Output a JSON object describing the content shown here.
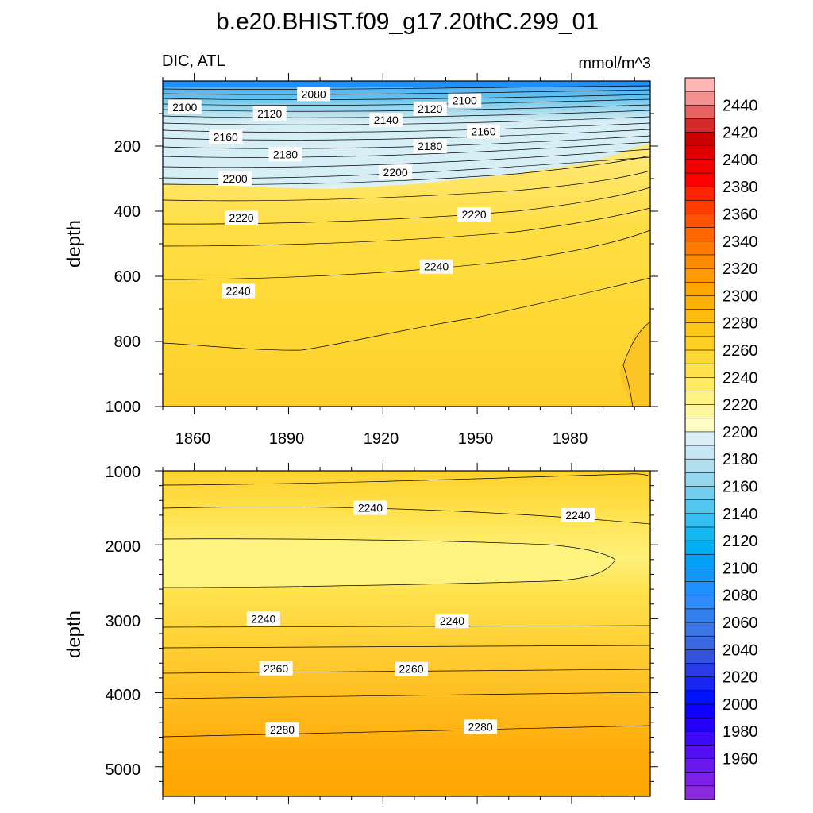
{
  "title": "b.e20.BHIST.f09_g17.20thC.299_01",
  "colors": {
    "colorbar": [
      "#8a2be2",
      "#7b20e8",
      "#6a18ee",
      "#5410f2",
      "#3c0af7",
      "#2400fb",
      "#0f00ff",
      "#0012ff",
      "#1a24f2",
      "#2a3ce8",
      "#3552de",
      "#3a66e0",
      "#3b77e6",
      "#347ff0",
      "#2e8cff",
      "#1e90ff",
      "#1197f8",
      "#05a0f5",
      "#00aef5",
      "#12b8f0",
      "#36bff0",
      "#55c6ee",
      "#75cdee",
      "#97d6ec",
      "#b1dff0",
      "#c7e7f4",
      "#daeef8",
      "#fffcc5",
      "#fff6a0",
      "#fff182",
      "#ffea66",
      "#ffe24d",
      "#ffd935",
      "#ffcf22",
      "#ffc61a",
      "#ffbc10",
      "#ffb005",
      "#ffa500",
      "#ff9a00",
      "#ff8c00",
      "#ff7a00",
      "#ff6600",
      "#ff5200",
      "#ff3c00",
      "#ff2400",
      "#ff0000",
      "#f20000",
      "#e00000",
      "#cc0000",
      "#d62a2a",
      "#e86060",
      "#f59090",
      "#ffb6b6"
    ]
  },
  "chart_data": [
    {
      "type": "heatmap",
      "title": "",
      "left_string": "DIC, ATL",
      "right_string": "mmol/m^3",
      "xlabel": "",
      "ylabel": "depth",
      "xlim": [
        1850,
        2005
      ],
      "ylim": [
        0,
        1000
      ],
      "y_reversed": true,
      "x_ticks": [
        "1860",
        "1890",
        "1920",
        "1950",
        "1980"
      ],
      "y_ticks": [
        "200",
        "400",
        "600",
        "800",
        "1000"
      ],
      "contour_labels": [
        {
          "text": "2100",
          "x": 1857,
          "y": 80
        },
        {
          "text": "2080",
          "x": 1898,
          "y": 40
        },
        {
          "text": "2120",
          "x": 1884,
          "y": 100
        },
        {
          "text": "2140",
          "x": 1921,
          "y": 120
        },
        {
          "text": "2120",
          "x": 1935,
          "y": 85
        },
        {
          "text": "2100",
          "x": 1946,
          "y": 60
        },
        {
          "text": "2160",
          "x": 1870,
          "y": 172
        },
        {
          "text": "2160",
          "x": 1952,
          "y": 155
        },
        {
          "text": "2180",
          "x": 1889,
          "y": 225
        },
        {
          "text": "2180",
          "x": 1935,
          "y": 200
        },
        {
          "text": "2200",
          "x": 1873,
          "y": 300
        },
        {
          "text": "2200",
          "x": 1924,
          "y": 280
        },
        {
          "text": "2220",
          "x": 1875,
          "y": 420
        },
        {
          "text": "2220",
          "x": 1949,
          "y": 410
        },
        {
          "text": "2240",
          "x": 1874,
          "y": 645
        },
        {
          "text": "2240",
          "x": 1937,
          "y": 570
        }
      ]
    },
    {
      "type": "heatmap",
      "xlabel": "",
      "ylabel": "depth",
      "xlim": [
        1850,
        2005
      ],
      "ylim": [
        1000,
        5400
      ],
      "y_reversed": true,
      "y_ticks": [
        "1000",
        "2000",
        "3000",
        "4000",
        "5000"
      ],
      "contour_labels": [
        {
          "text": "2240",
          "x": 1916,
          "y": 1500
        },
        {
          "text": "2240",
          "x": 1982,
          "y": 1600
        },
        {
          "text": "2240",
          "x": 1882,
          "y": 3000
        },
        {
          "text": "2240",
          "x": 1942,
          "y": 3030
        },
        {
          "text": "2260",
          "x": 1886,
          "y": 3670
        },
        {
          "text": "2260",
          "x": 1929,
          "y": 3680
        },
        {
          "text": "2280",
          "x": 1888,
          "y": 4500
        },
        {
          "text": "2280",
          "x": 1951,
          "y": 4460
        }
      ]
    }
  ],
  "colorbar": {
    "labels": [
      "2440",
      "2420",
      "2400",
      "2380",
      "2360",
      "2340",
      "2320",
      "2300",
      "2280",
      "2260",
      "2240",
      "2220",
      "2200",
      "2180",
      "2160",
      "2140",
      "2120",
      "2100",
      "2080",
      "2060",
      "2040",
      "2020",
      "2000",
      "1980",
      "1960"
    ]
  }
}
